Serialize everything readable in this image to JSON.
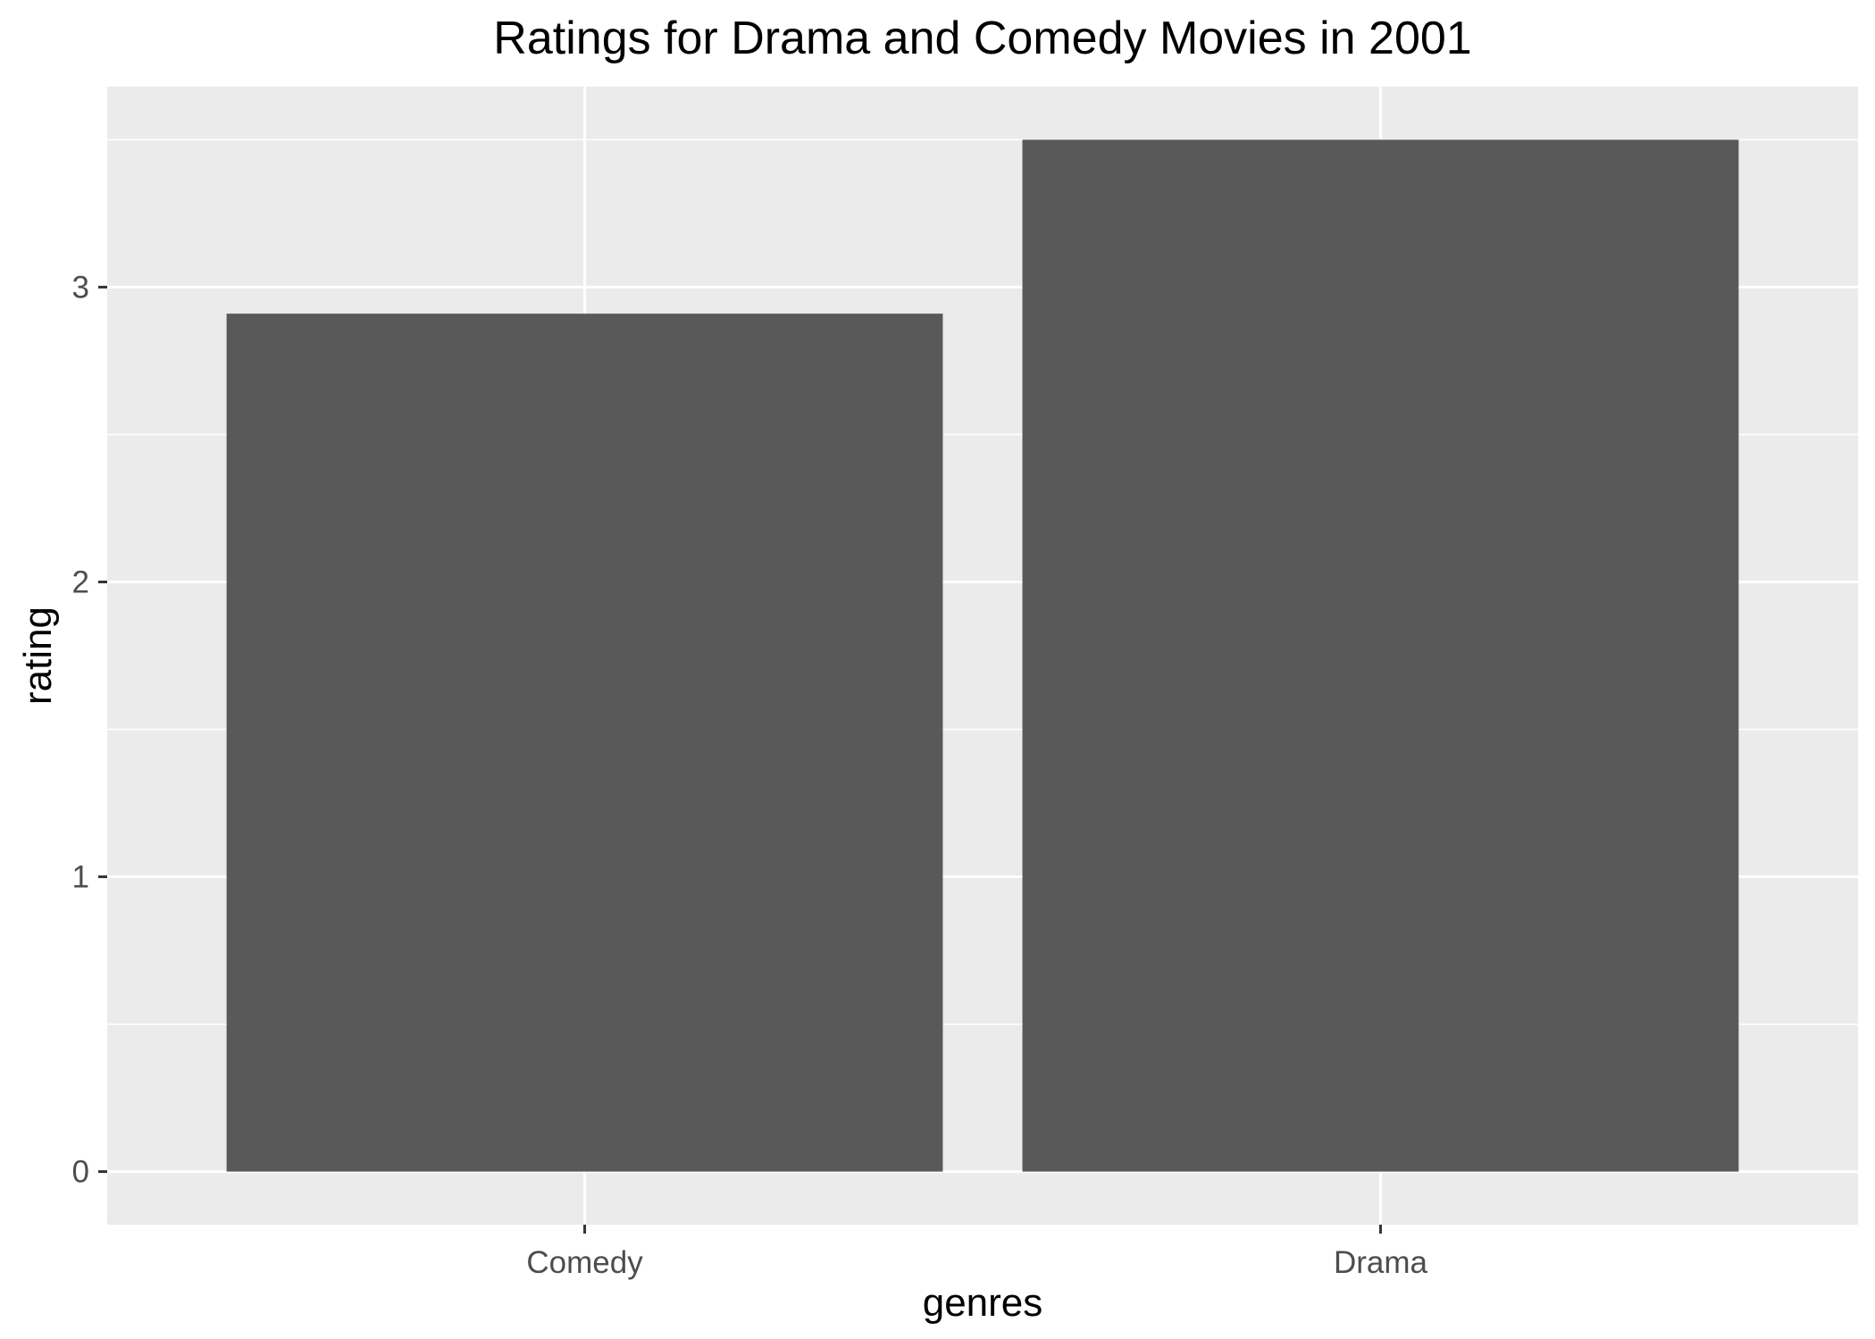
{
  "chart_data": {
    "type": "bar",
    "title": "Ratings for Drama and Comedy Movies in 2001",
    "xlabel": "genres",
    "ylabel": "rating",
    "categories": [
      "Comedy",
      "Drama"
    ],
    "values": [
      2.91,
      3.5
    ],
    "ylim": [
      -0.18,
      3.68
    ],
    "yticks": [
      0,
      1,
      2,
      3
    ],
    "grid": true,
    "legend": "none"
  },
  "colors": {
    "panel_background": "#EBEBEB",
    "grid_major": "#FFFFFF",
    "bar_fill": "#595959",
    "tick_mark": "#333333",
    "tick_label": "#4D4D4D",
    "text": "#000000"
  }
}
